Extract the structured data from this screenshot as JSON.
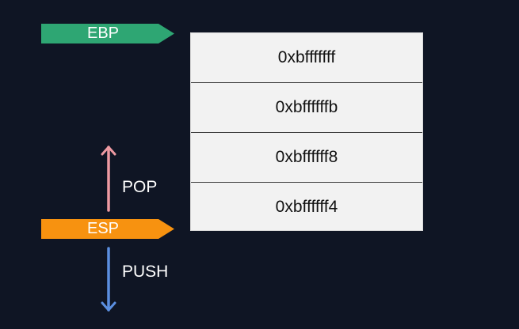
{
  "registers": {
    "ebp": {
      "label": "EBP",
      "color": "#2ea673"
    },
    "esp": {
      "label": "ESP",
      "color": "#f79210"
    }
  },
  "stack": {
    "cells": [
      {
        "address": "0xbfffffff"
      },
      {
        "address": "0xbffffffb"
      },
      {
        "address": "0xbffffff8"
      },
      {
        "address": "0xbffffff4"
      }
    ]
  },
  "operations": {
    "pop": {
      "label": "POP",
      "color": "#ee9aa2"
    },
    "push": {
      "label": "PUSH",
      "color": "#5b8fe0"
    }
  }
}
